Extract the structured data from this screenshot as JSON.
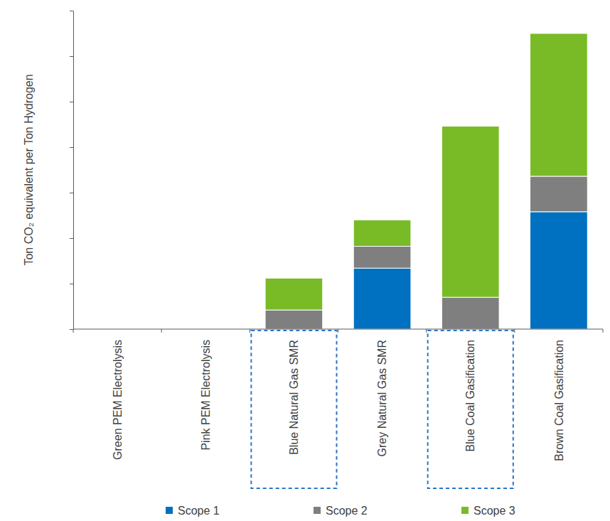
{
  "chart_data": {
    "type": "bar",
    "stacked": true,
    "y_label": "Ton CO₂ equivalent per Ton Hydrogen",
    "categories": [
      "Green PEM Electrolysis",
      "Pink PEM Electrolysis",
      "Blue Natural Gas SMR",
      "Grey Natural Gas SMR",
      "Blue Coal Gasification",
      "Brown Coal Gasification"
    ],
    "series": [
      {
        "name": "Scope 1",
        "color": "#0070c0",
        "values": [
          0,
          0,
          0,
          6.7,
          0,
          12.9
        ]
      },
      {
        "name": "Scope 2",
        "color": "#7f7f7f",
        "values": [
          0,
          0,
          2.1,
          2.4,
          3.5,
          3.9
        ]
      },
      {
        "name": "Scope 3",
        "color": "#78bb26",
        "values": [
          0,
          0,
          3.5,
          2.9,
          18.8,
          15.7
        ]
      }
    ],
    "ylim": [
      0,
      35
    ],
    "yticks": [
      0,
      5,
      10,
      15,
      20,
      25,
      30,
      35
    ],
    "tick_labels": "x",
    "grid": false,
    "legend": "bottom"
  }
}
